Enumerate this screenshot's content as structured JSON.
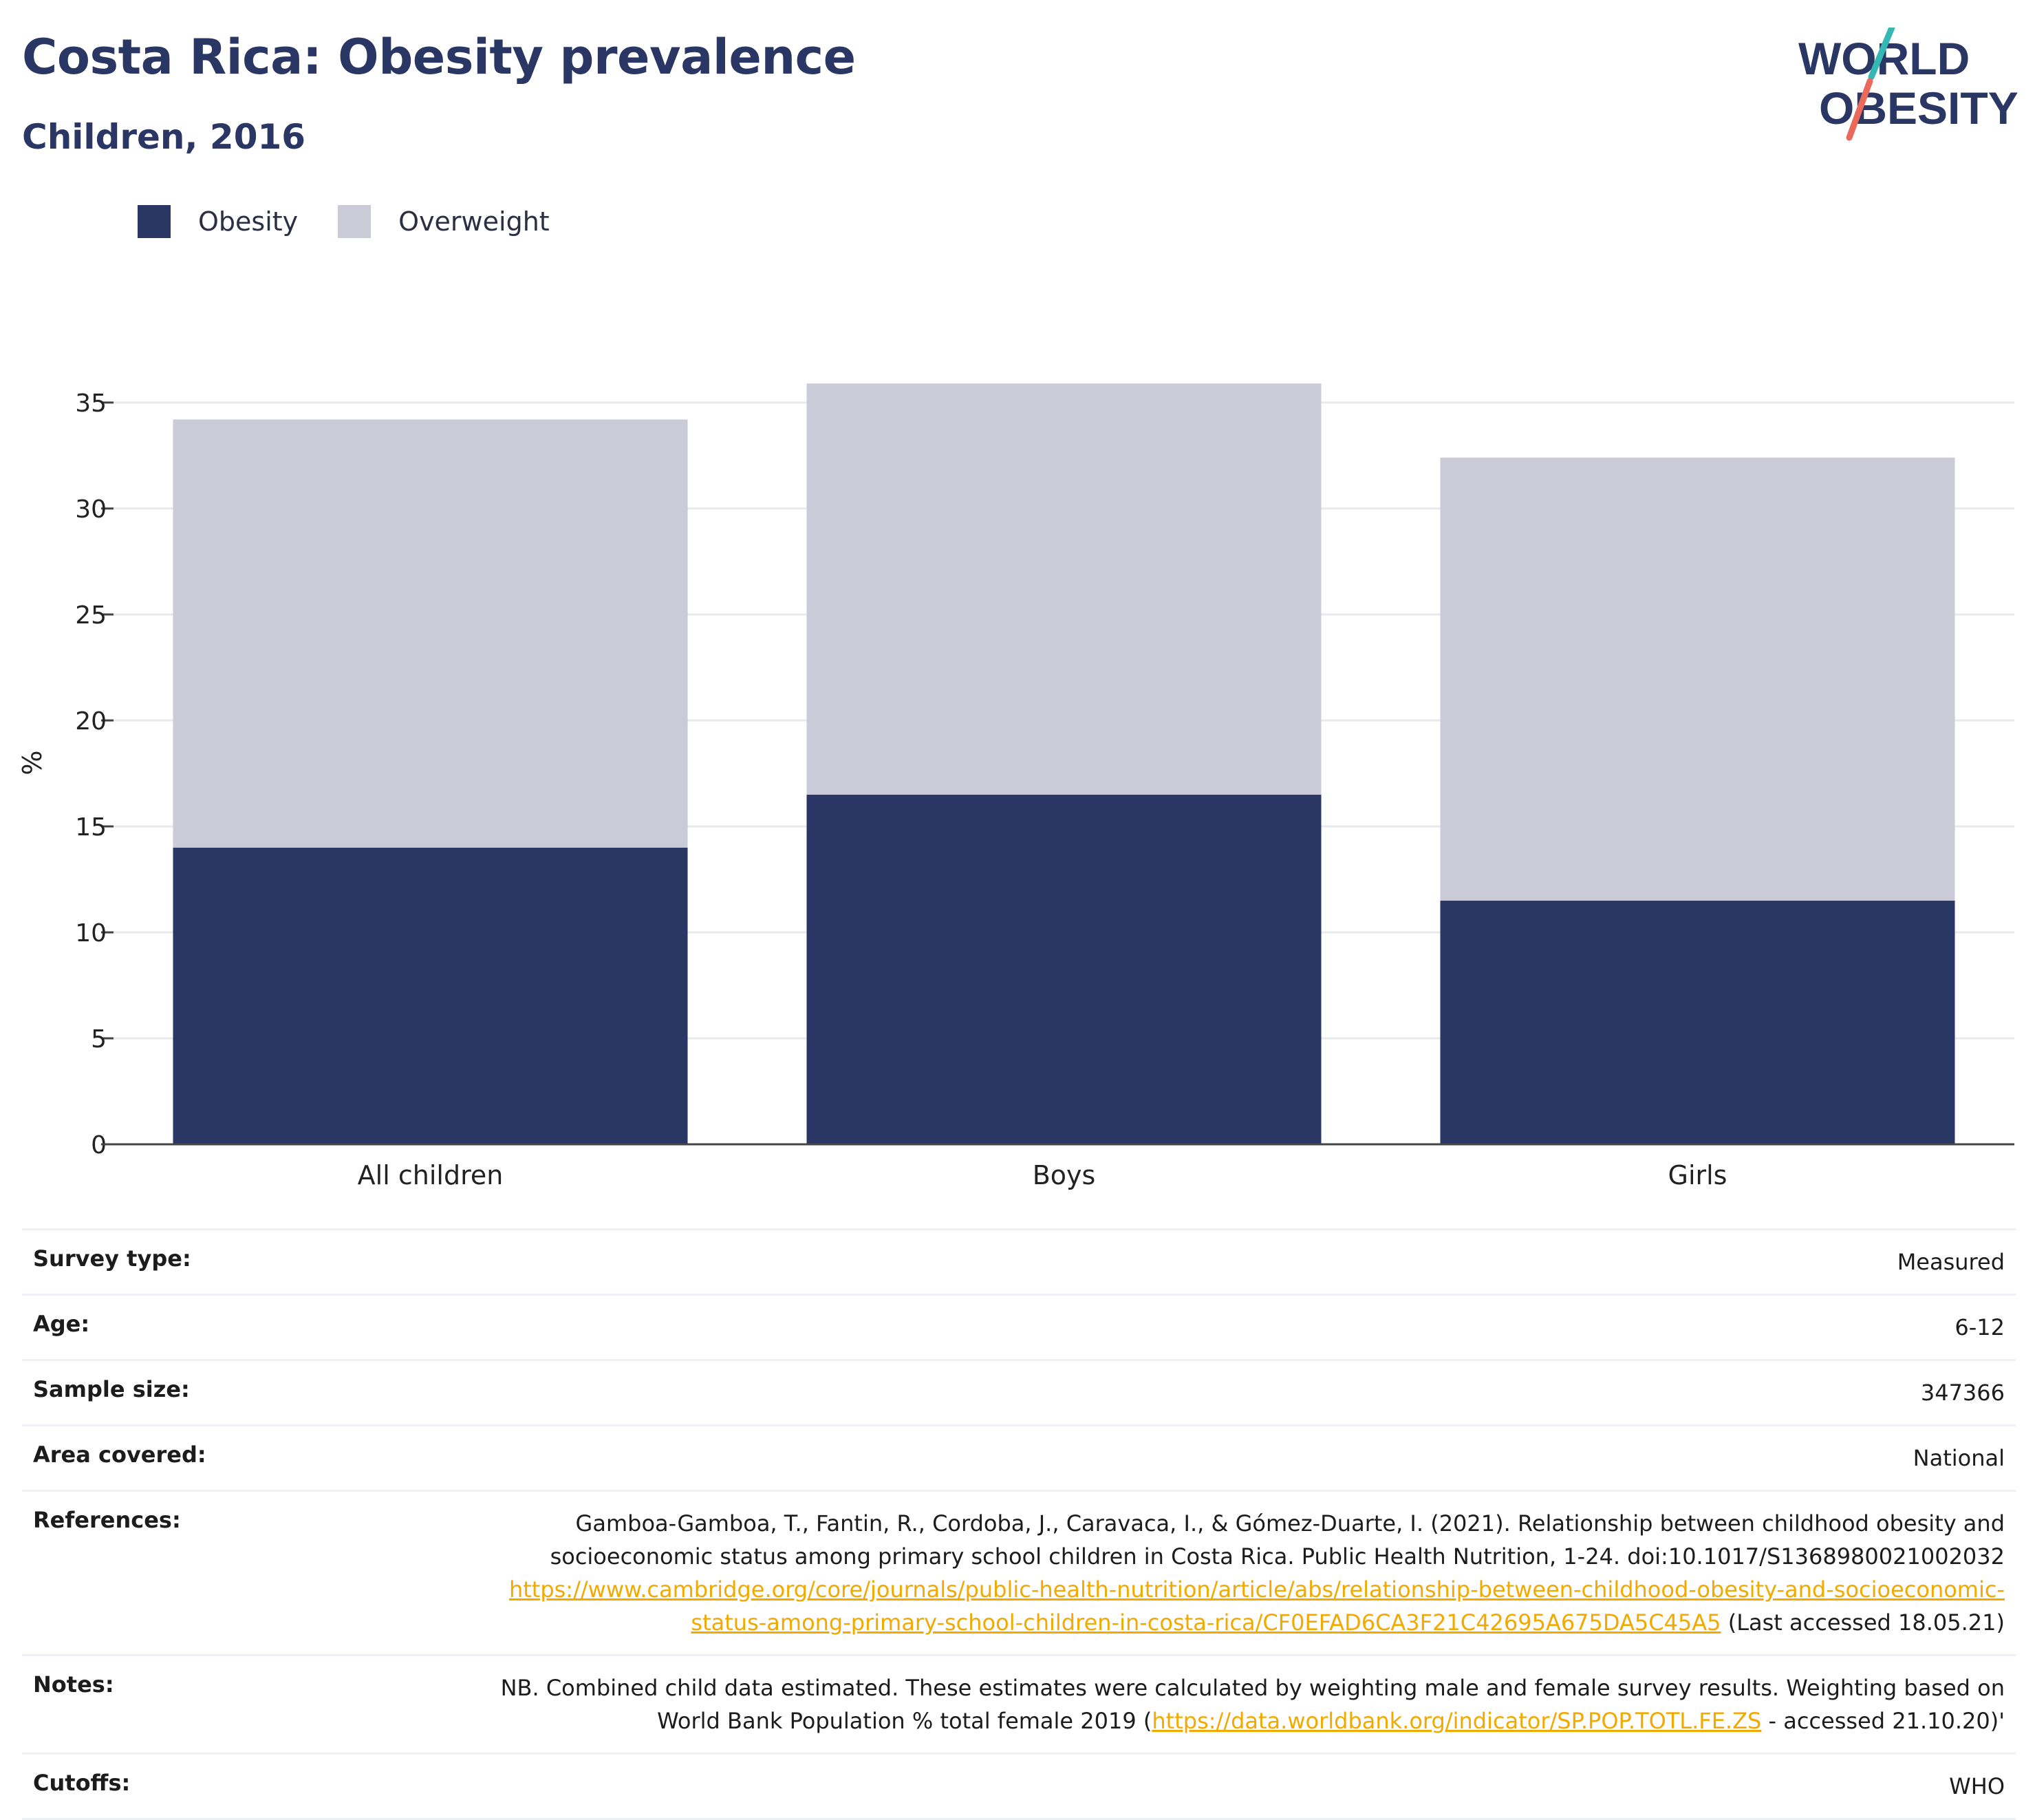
{
  "header": {
    "title": "Costa Rica: Obesity prevalence",
    "subtitle": "Children, 2016"
  },
  "logo": {
    "line1": "WORLD",
    "line2": "OBESITY",
    "colors": {
      "navy": "#2a3663",
      "teal": "#35b8b3",
      "coral": "#e96a5a"
    }
  },
  "legend": [
    {
      "label": "Obesity",
      "color": "#2a3663"
    },
    {
      "label": "Overweight",
      "color": "#cacbd7"
    }
  ],
  "chart_data": {
    "type": "bar",
    "stacked": true,
    "categories": [
      "All children",
      "Boys",
      "Girls"
    ],
    "series": [
      {
        "name": "Obesity",
        "color": "#2a3663",
        "values": [
          14.0,
          16.5,
          11.5
        ]
      },
      {
        "name": "Overweight",
        "color": "#cacbd7",
        "values": [
          20.2,
          19.4,
          20.9
        ]
      }
    ],
    "ylabel": "%",
    "ylim": [
      0,
      36
    ],
    "yticks": [
      0,
      5,
      10,
      15,
      20,
      25,
      30,
      35
    ],
    "grid": true
  },
  "info": [
    {
      "key": "Survey type:",
      "value": "Measured"
    },
    {
      "key": "Age:",
      "value": "6-12"
    },
    {
      "key": "Sample size:",
      "value": "347366"
    },
    {
      "key": "Area covered:",
      "value": "National"
    },
    {
      "key": "References:",
      "parts": [
        {
          "text": "Gamboa-Gamboa, T., Fantin, R., Cordoba, J., Caravaca, I., & Gómez-Duarte, I. (2021). Relationship between childhood obesity and socioeconomic status among primary school children in Costa Rica. Public Health Nutrition, 1-24. doi:10.1017/S1368980021002032 "
        },
        {
          "text": "https://www.cambridge.org/core/journals/public-health-nutrition/article/abs/relationship-between-childhood-obesity-and-socioeconomic-status-among-primary-school-children-in-costa-rica/CF0EFAD6CA3F21C42695A675DA5C45A5",
          "link": true
        },
        {
          "text": " (Last accessed 18.05.21)"
        }
      ]
    },
    {
      "key": "Notes:",
      "parts": [
        {
          "text": "NB. Combined child data estimated. These estimates were calculated by weighting male and female survey results. Weighting based on World Bank Population % total female 2019 ("
        },
        {
          "text": "https://data.worldbank.org/indicator/SP.POP.TOTL.FE.ZS",
          "link": true
        },
        {
          "text": " - accessed 21.10.20)'"
        }
      ]
    },
    {
      "key": "Cutoffs:",
      "value": "WHO"
    }
  ]
}
